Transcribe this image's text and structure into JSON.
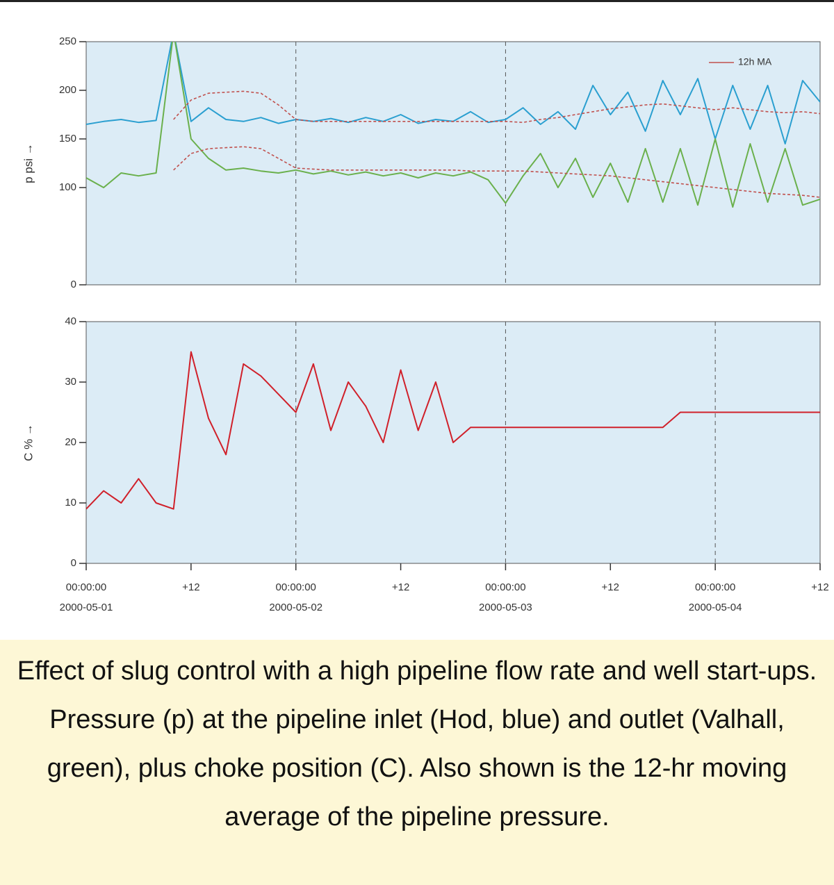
{
  "chart_data": [
    {
      "type": "line",
      "ylabel": "p psi →",
      "x": [
        0,
        2,
        4,
        6,
        8,
        10,
        12,
        14,
        16,
        18,
        20,
        22,
        24,
        26,
        28,
        30,
        32,
        34,
        36,
        38,
        40,
        42,
        44,
        46,
        48,
        50,
        52,
        54,
        56,
        58,
        60,
        62,
        64,
        66,
        68,
        70,
        72,
        74,
        76,
        78,
        80,
        82,
        84
      ],
      "xlim": [
        0,
        84
      ],
      "ylim": [
        0,
        250
      ],
      "yticks": [
        0,
        100,
        150,
        200,
        250
      ],
      "vlines": [
        24,
        48
      ],
      "legend": {
        "label": "12h MA",
        "corner": "upper right",
        "color": "#c0504d"
      },
      "series": [
        {
          "color": "#2a9fd0",
          "values": [
            165,
            168,
            170,
            167,
            169,
            260,
            168,
            182,
            170,
            168,
            172,
            166,
            170,
            168,
            171,
            167,
            172,
            168,
            175,
            166,
            170,
            168,
            178,
            167,
            170,
            182,
            165,
            178,
            160,
            205,
            175,
            198,
            158,
            210,
            175,
            212,
            150,
            205,
            160,
            205,
            145,
            210,
            188
          ]
        },
        {
          "color": "#6ab04c",
          "values": [
            110,
            100,
            115,
            112,
            115,
            260,
            150,
            130,
            118,
            120,
            117,
            115,
            118,
            114,
            117,
            113,
            116,
            112,
            115,
            110,
            115,
            112,
            116,
            108,
            84,
            112,
            135,
            100,
            130,
            90,
            125,
            85,
            140,
            85,
            140,
            82,
            150,
            80,
            145,
            85,
            140,
            82,
            88
          ]
        },
        {
          "color": "#c0504d",
          "dashed": true,
          "values": [
            null,
            null,
            null,
            null,
            null,
            170,
            190,
            197,
            198,
            199,
            197,
            185,
            170,
            168,
            168,
            168,
            168,
            168,
            168,
            168,
            168,
            168,
            168,
            168,
            168,
            167,
            170,
            172,
            175,
            178,
            181,
            183,
            185,
            186,
            184,
            182,
            180,
            182,
            180,
            178,
            177,
            178,
            176
          ]
        },
        {
          "color": "#c0504d",
          "dashed": true,
          "values": [
            null,
            null,
            null,
            null,
            null,
            118,
            135,
            140,
            141,
            142,
            140,
            130,
            120,
            119,
            118,
            118,
            118,
            118,
            118,
            118,
            118,
            118,
            117,
            117,
            117,
            117,
            116,
            115,
            114,
            113,
            112,
            110,
            108,
            106,
            104,
            102,
            100,
            98,
            96,
            94,
            93,
            92,
            90
          ]
        }
      ]
    },
    {
      "type": "line",
      "ylabel": "C % →",
      "x": [
        0,
        2,
        4,
        6,
        8,
        10,
        12,
        14,
        16,
        18,
        20,
        22,
        24,
        26,
        28,
        30,
        32,
        34,
        36,
        38,
        40,
        42,
        44,
        46,
        48,
        50,
        52,
        54,
        56,
        58,
        60,
        62,
        64,
        66,
        68,
        70,
        72,
        74,
        76,
        78,
        80,
        82,
        84
      ],
      "xlim": [
        0,
        84
      ],
      "ylim": [
        0,
        40
      ],
      "yticks": [
        0,
        10,
        20,
        30,
        40
      ],
      "vlines": [
        24,
        48,
        72
      ],
      "xticks": [
        {
          "value": 0,
          "label": "00:00:00"
        },
        {
          "value": 12,
          "label": "+12"
        },
        {
          "value": 24,
          "label": "00:00:00"
        },
        {
          "value": 36,
          "label": "+12"
        },
        {
          "value": 48,
          "label": "00:00:00"
        },
        {
          "value": 60,
          "label": "+12"
        },
        {
          "value": 72,
          "label": "00:00:00"
        },
        {
          "value": 84,
          "label": "+12"
        }
      ],
      "xtick_sublabels": [
        "2000-05-01",
        null,
        "2000-05-02",
        null,
        "2000-05-03",
        null,
        "2000-05-04",
        null
      ],
      "series": [
        {
          "color": "#d0202a",
          "values": [
            9,
            12,
            10,
            14,
            10,
            9,
            35,
            24,
            18,
            33,
            31,
            28,
            25,
            33,
            22,
            30,
            26,
            20,
            32,
            22,
            30,
            20,
            22.5,
            22.5,
            22.5,
            22.5,
            22.5,
            22.5,
            22.5,
            22.5,
            22.5,
            22.5,
            22.5,
            22.5,
            25,
            25,
            25,
            25,
            25,
            25,
            25,
            25,
            25
          ]
        }
      ]
    }
  ],
  "caption": "Effect of slug control with a high pipeline flow rate and well start-ups. Pressure (p) at the pipeline inlet (Hod, blue) and outlet (Valhall, green), plus choke position (C). Also shown is the 12-hr moving average of the pipeline pressure."
}
